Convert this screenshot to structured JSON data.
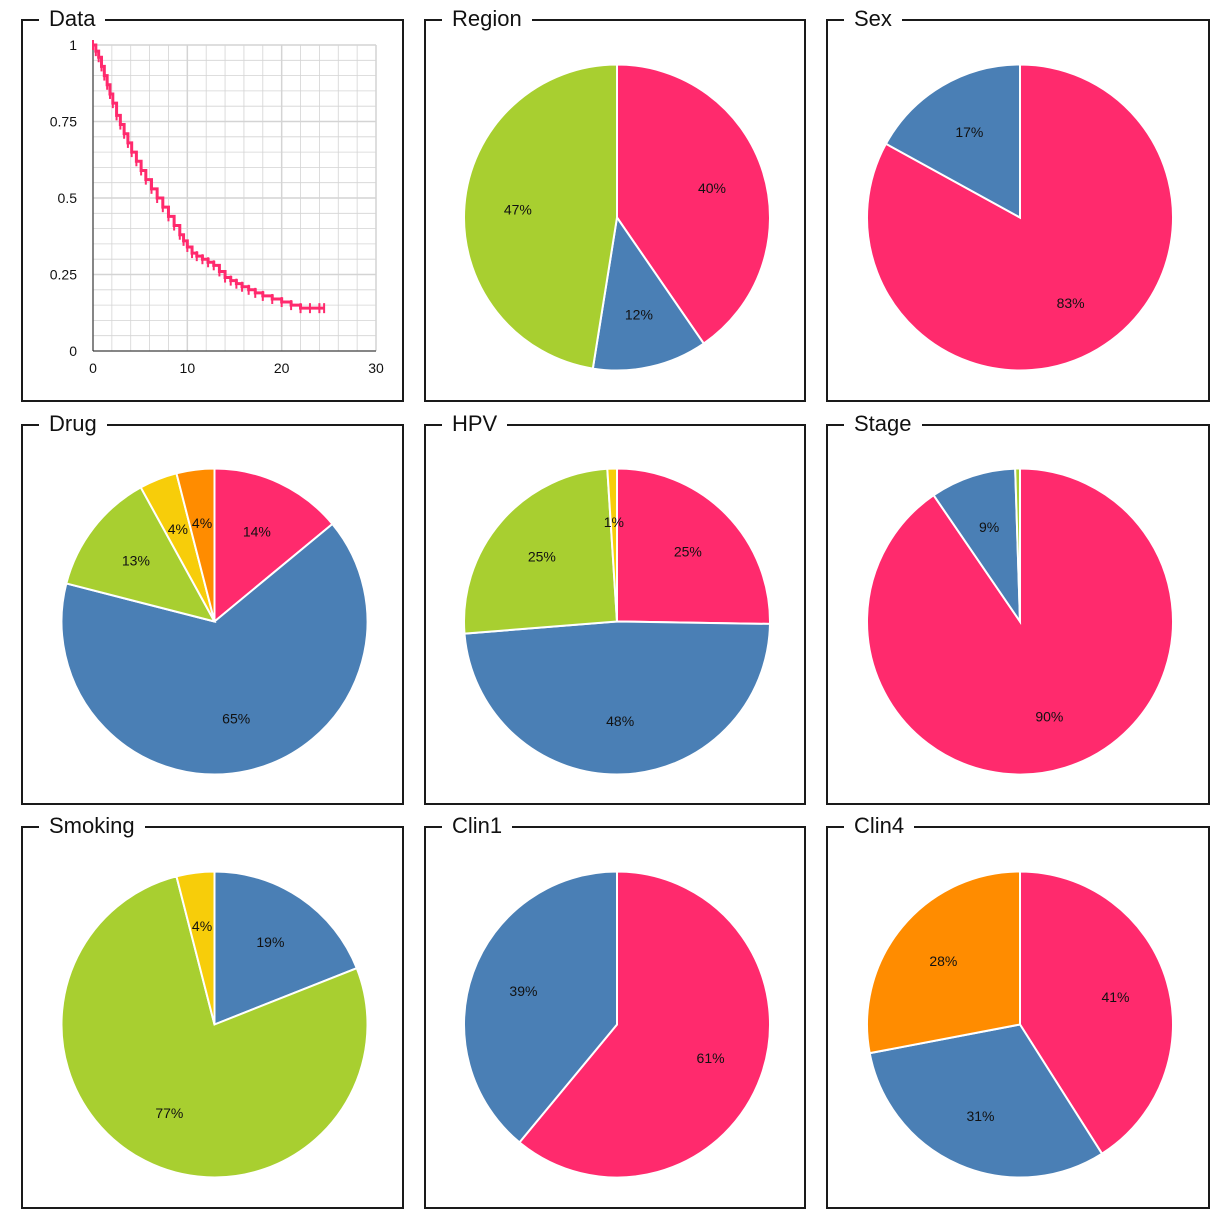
{
  "colors": {
    "pink": "#FF2A6D",
    "blue": "#4A7FB5",
    "green": "#A8CF30",
    "yellow": "#F7CD0A",
    "orange": "#FF8C00",
    "grid": "#D4D4D4"
  },
  "panels": [
    {
      "title": "Data"
    },
    {
      "title": "Region"
    },
    {
      "title": "Sex"
    },
    {
      "title": "Drug"
    },
    {
      "title": "HPV"
    },
    {
      "title": "Stage"
    },
    {
      "title": "Smoking"
    },
    {
      "title": "Clin1"
    },
    {
      "title": "Clin4"
    }
  ],
  "chart_data": [
    {
      "type": "line",
      "title": "Data",
      "xlabel": "",
      "ylabel": "",
      "xlim": [
        0,
        30
      ],
      "ylim": [
        0,
        1
      ],
      "x_ticks": [
        "0",
        "10",
        "20",
        "30"
      ],
      "y_ticks": [
        "0",
        "0.25",
        "0.5",
        "0.75",
        "1"
      ],
      "grid": true,
      "legend": "none",
      "series": [
        {
          "color": "#FF2A6D",
          "x": [
            0,
            0.3,
            0.6,
            0.9,
            1.2,
            1.5,
            1.8,
            2.1,
            2.5,
            2.9,
            3.3,
            3.7,
            4.1,
            4.6,
            5.1,
            5.6,
            6.2,
            6.8,
            7.4,
            8.0,
            8.6,
            9.2,
            9.6,
            10.0,
            10.5,
            11.0,
            11.6,
            12.2,
            12.8,
            13.4,
            14.0,
            14.6,
            15.2,
            15.8,
            16.5,
            17.2,
            18.0,
            19.0,
            20.0,
            21.0,
            22.0,
            23.0,
            24.0,
            24.5
          ],
          "y": [
            1.0,
            0.98,
            0.96,
            0.93,
            0.9,
            0.87,
            0.84,
            0.81,
            0.77,
            0.74,
            0.71,
            0.68,
            0.65,
            0.62,
            0.59,
            0.56,
            0.53,
            0.5,
            0.47,
            0.44,
            0.41,
            0.38,
            0.36,
            0.34,
            0.32,
            0.31,
            0.3,
            0.29,
            0.28,
            0.26,
            0.24,
            0.23,
            0.22,
            0.21,
            0.2,
            0.19,
            0.18,
            0.17,
            0.16,
            0.15,
            0.14,
            0.14,
            0.14,
            0.14
          ]
        }
      ]
    },
    {
      "type": "pie",
      "title": "Region",
      "slices": [
        {
          "label": "40%",
          "value": 40,
          "color": "#FF2A6D"
        },
        {
          "label": "12%",
          "value": 12,
          "color": "#4A7FB5"
        },
        {
          "label": "47%",
          "value": 47,
          "color": "#A8CF30"
        }
      ]
    },
    {
      "type": "pie",
      "title": "Sex",
      "slices": [
        {
          "label": "83%",
          "value": 83,
          "color": "#FF2A6D"
        },
        {
          "label": "17%",
          "value": 17,
          "color": "#4A7FB5"
        }
      ]
    },
    {
      "type": "pie",
      "title": "Drug",
      "slices": [
        {
          "label": "14%",
          "value": 14,
          "color": "#FF2A6D"
        },
        {
          "label": "65%",
          "value": 65,
          "color": "#4A7FB5"
        },
        {
          "label": "13%",
          "value": 13,
          "color": "#A8CF30"
        },
        {
          "label": "4%",
          "value": 4,
          "color": "#F7CD0A"
        },
        {
          "label": "4%",
          "value": 4,
          "color": "#FF8C00"
        }
      ]
    },
    {
      "type": "pie",
      "title": "HPV",
      "slices": [
        {
          "label": "25%",
          "value": 25,
          "color": "#FF2A6D"
        },
        {
          "label": "48%",
          "value": 48,
          "color": "#4A7FB5"
        },
        {
          "label": "25%",
          "value": 25,
          "color": "#A8CF30"
        },
        {
          "label": "1%",
          "value": 1,
          "color": "#F7CD0A"
        }
      ]
    },
    {
      "type": "pie",
      "title": "Stage",
      "slices": [
        {
          "label": "90%",
          "value": 90,
          "color": "#FF2A6D"
        },
        {
          "label": "9%",
          "value": 9,
          "color": "#4A7FB5"
        },
        {
          "label": "",
          "value": 0.5,
          "color": "#A8CF30"
        }
      ]
    },
    {
      "type": "pie",
      "title": "Smoking",
      "slices": [
        {
          "label": "19%",
          "value": 19,
          "color": "#4A7FB5"
        },
        {
          "label": "77%",
          "value": 77,
          "color": "#A8CF30"
        },
        {
          "label": "4%",
          "value": 4,
          "color": "#F7CD0A"
        }
      ]
    },
    {
      "type": "pie",
      "title": "Clin1",
      "slices": [
        {
          "label": "61%",
          "value": 61,
          "color": "#FF2A6D"
        },
        {
          "label": "39%",
          "value": 39,
          "color": "#4A7FB5"
        }
      ]
    },
    {
      "type": "pie",
      "title": "Clin4",
      "slices": [
        {
          "label": "41%",
          "value": 41,
          "color": "#FF2A6D"
        },
        {
          "label": "31%",
          "value": 31,
          "color": "#4A7FB5"
        },
        {
          "label": "28%",
          "value": 28,
          "color": "#FF8C00"
        }
      ]
    }
  ]
}
